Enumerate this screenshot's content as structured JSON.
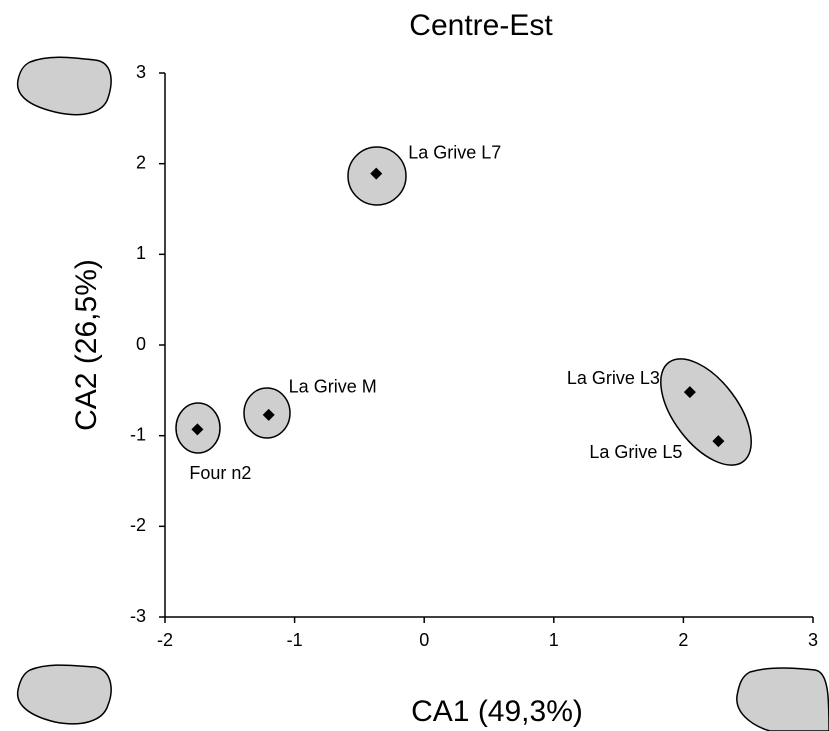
{
  "chart_data": {
    "type": "scatter",
    "title": "Centre-Est",
    "x_label": "CA1 (49,3%)",
    "y_label": "CA2 (26,5%)",
    "series": [
      {
        "color": "#000000",
        "labels": [
          "La Grive L7",
          "La Grive M",
          "Four n2",
          "La Grive L3",
          "La Grive L5"
        ],
        "x": [
          -0.37,
          -1.2,
          -1.75,
          2.05,
          2.27
        ],
        "values": [
          1.89,
          -0.77,
          -0.93,
          -0.52,
          -1.06
        ]
      }
    ],
    "xlim": [
      -2,
      3
    ],
    "xticks": [
      -2,
      -1,
      0,
      1,
      2,
      3
    ],
    "ylim": [
      -3,
      3
    ],
    "yticks": [
      -3,
      -2,
      -1,
      0,
      1,
      2,
      3
    ]
  }
}
